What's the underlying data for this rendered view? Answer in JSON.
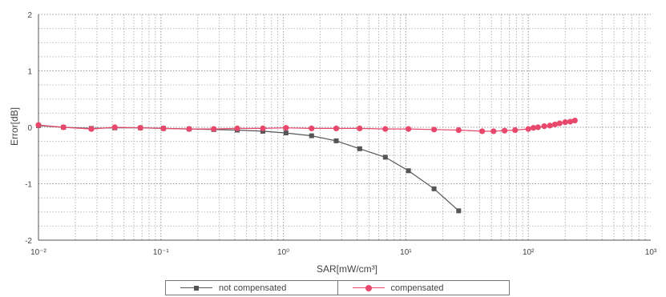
{
  "chart_data": {
    "type": "line",
    "xscale": "log",
    "xlim": [
      0.01,
      1000
    ],
    "ylim": [
      -2,
      2
    ],
    "xlabel": "SAR[mW/cm³]",
    "ylabel": "Error[dB]",
    "x_ticks": [
      0.01,
      0.1,
      1,
      10,
      100,
      1000
    ],
    "x_tick_labels": [
      "10⁻²",
      "10⁻¹",
      "10⁰",
      "10¹",
      "10²",
      "10³"
    ],
    "y_ticks": [
      -2,
      -1,
      0,
      1,
      2
    ],
    "y_tick_labels": [
      "-2",
      "-1",
      "0",
      "1",
      "2"
    ],
    "grid": true,
    "legend_position": "bottom",
    "series": [
      {
        "name": "not compensated",
        "color": "#555555",
        "marker": "square",
        "x": [
          0.01,
          0.016,
          0.027,
          0.042,
          0.068,
          0.105,
          0.17,
          0.27,
          0.42,
          0.68,
          1.05,
          1.7,
          2.7,
          4.2,
          6.8,
          10.5,
          17,
          27
        ],
        "y": [
          0.03,
          0.0,
          -0.02,
          -0.01,
          -0.01,
          -0.02,
          -0.03,
          -0.04,
          -0.05,
          -0.07,
          -0.1,
          -0.15,
          -0.24,
          -0.38,
          -0.53,
          -0.77,
          -1.09,
          -1.48
        ]
      },
      {
        "name": "compensated",
        "color": "#e8486c",
        "marker": "circle",
        "x": [
          0.01,
          0.016,
          0.027,
          0.042,
          0.068,
          0.105,
          0.17,
          0.27,
          0.42,
          0.68,
          1.05,
          1.7,
          2.7,
          4.2,
          6.8,
          10.5,
          17,
          27,
          42,
          52,
          64,
          78,
          100,
          110,
          120,
          135,
          150,
          165,
          180,
          200,
          220,
          240
        ],
        "y": [
          0.04,
          0.0,
          -0.03,
          0.0,
          -0.01,
          -0.02,
          -0.03,
          -0.03,
          -0.02,
          -0.02,
          -0.01,
          -0.02,
          -0.02,
          -0.02,
          -0.03,
          -0.03,
          -0.04,
          -0.05,
          -0.07,
          -0.07,
          -0.06,
          -0.05,
          -0.03,
          -0.01,
          0.0,
          0.02,
          0.03,
          0.05,
          0.07,
          0.09,
          0.1,
          0.12
        ]
      }
    ]
  },
  "legend": {
    "items": [
      {
        "label": "not compensated",
        "color": "#555555",
        "marker": "square"
      },
      {
        "label": "compensated",
        "color": "#e8486c",
        "marker": "circle"
      }
    ]
  }
}
